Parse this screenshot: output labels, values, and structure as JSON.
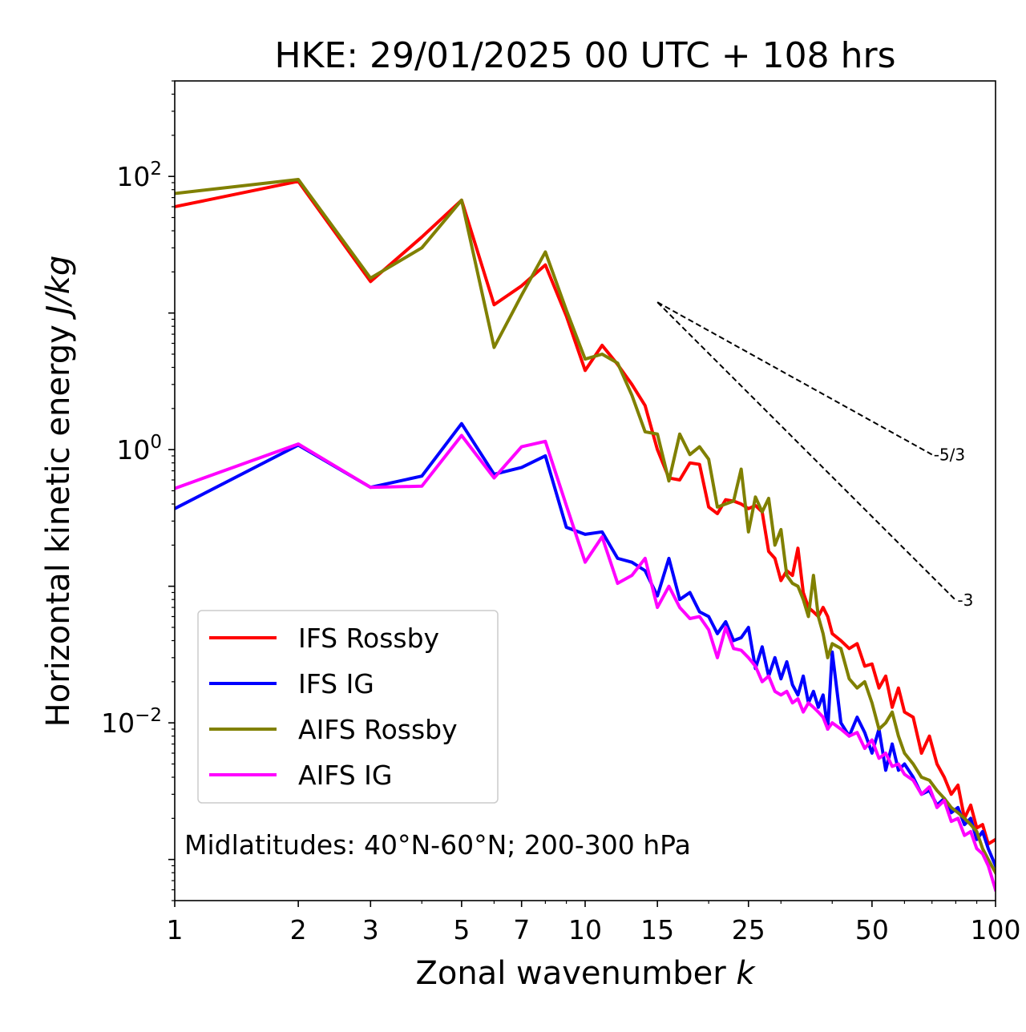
{
  "chart_data": {
    "type": "line",
    "title": "HKE: 29/01/2025 00 UTC + 108 hrs",
    "xlabel_prefix": "Zonal wavenumber ",
    "xlabel_var": "k",
    "ylabel_prefix": "Horizontal kinetic energy ",
    "ylabel_unit": "J/kg",
    "xscale": "log",
    "yscale": "log",
    "xlim": [
      1,
      100
    ],
    "ylim": [
      0.0005,
      500
    ],
    "x_ticks": [
      1,
      2,
      3,
      5,
      7,
      10,
      15,
      25,
      50,
      100
    ],
    "x_tick_labels": [
      "1",
      "2",
      "3",
      "5",
      "7",
      "10",
      "15",
      "25",
      "50",
      "100"
    ],
    "y_ticks": [
      {
        "value": 0.01,
        "base": "10",
        "exp": "−2"
      },
      {
        "value": 1,
        "base": "10",
        "exp": "0"
      },
      {
        "value": 100,
        "base": "10",
        "exp": "2"
      }
    ],
    "grid": false,
    "legend_position": "lower-left",
    "annotation": "Midlatitudes: 40°N-60°N; 200-300 hPa",
    "reference_lines": [
      {
        "label": "-5/3",
        "x": [
          15,
          70
        ],
        "y": [
          12,
          0.92
        ]
      },
      {
        "label": "-3",
        "x": [
          15,
          80
        ],
        "y": [
          12,
          0.079
        ]
      }
    ],
    "series": [
      {
        "name": "IFS Rossby",
        "color": "#ff0000",
        "x": [
          1,
          2,
          3,
          4,
          5,
          6,
          7,
          8,
          9,
          10,
          11,
          12,
          13,
          14,
          15,
          16,
          17,
          18,
          19,
          20,
          21,
          22,
          23,
          24,
          25,
          26,
          27,
          28,
          29,
          30,
          31,
          32,
          33,
          34,
          35,
          36,
          37,
          38,
          39,
          40,
          42,
          44,
          46,
          48,
          50,
          52,
          54,
          56,
          58,
          60,
          63,
          66,
          69,
          72,
          75,
          78,
          81,
          84,
          87,
          90,
          93,
          96,
          100
        ],
        "y": [
          60,
          92,
          17,
          36,
          67,
          11.5,
          15.8,
          22.5,
          9.5,
          3.8,
          5.8,
          4.2,
          3.0,
          2.1,
          1.0,
          0.62,
          0.6,
          0.8,
          0.78,
          0.38,
          0.34,
          0.43,
          0.42,
          0.4,
          0.37,
          0.39,
          0.35,
          0.18,
          0.16,
          0.11,
          0.13,
          0.12,
          0.19,
          0.09,
          0.07,
          0.065,
          0.06,
          0.07,
          0.06,
          0.045,
          0.04,
          0.035,
          0.038,
          0.026,
          0.027,
          0.018,
          0.022,
          0.013,
          0.018,
          0.012,
          0.011,
          0.006,
          0.008,
          0.005,
          0.004,
          0.003,
          0.0035,
          0.002,
          0.0025,
          0.0017,
          0.0018,
          0.0013,
          0.0014
        ]
      },
      {
        "name": "IFS IG",
        "color": "#0000ff",
        "x": [
          1,
          2,
          3,
          4,
          5,
          6,
          7,
          8,
          9,
          10,
          11,
          12,
          13,
          14,
          15,
          16,
          17,
          18,
          19,
          20,
          21,
          22,
          23,
          24,
          25,
          26,
          27,
          28,
          29,
          30,
          31,
          32,
          33,
          34,
          35,
          36,
          37,
          38,
          39,
          40,
          42,
          44,
          46,
          48,
          50,
          52,
          54,
          56,
          58,
          60,
          63,
          66,
          69,
          72,
          75,
          78,
          81,
          84,
          87,
          90,
          93,
          96,
          100
        ],
        "y": [
          0.37,
          1.08,
          0.53,
          0.64,
          1.55,
          0.66,
          0.74,
          0.9,
          0.27,
          0.24,
          0.25,
          0.16,
          0.15,
          0.13,
          0.085,
          0.16,
          0.08,
          0.09,
          0.065,
          0.06,
          0.045,
          0.055,
          0.04,
          0.042,
          0.05,
          0.025,
          0.036,
          0.022,
          0.03,
          0.021,
          0.028,
          0.019,
          0.016,
          0.022,
          0.014,
          0.017,
          0.013,
          0.016,
          0.009,
          0.033,
          0.01,
          0.008,
          0.011,
          0.0085,
          0.006,
          0.009,
          0.0045,
          0.007,
          0.0045,
          0.005,
          0.004,
          0.003,
          0.0032,
          0.0025,
          0.0028,
          0.0022,
          0.0024,
          0.0018,
          0.002,
          0.0014,
          0.0016,
          0.0012,
          0.0009
        ]
      },
      {
        "name": "AIFS Rossby",
        "color": "#808000",
        "x": [
          1,
          2,
          3,
          4,
          5,
          6,
          7,
          8,
          9,
          10,
          11,
          12,
          13,
          14,
          15,
          16,
          17,
          18,
          19,
          20,
          21,
          22,
          23,
          24,
          25,
          26,
          27,
          28,
          29,
          30,
          31,
          32,
          33,
          34,
          35,
          36,
          37,
          38,
          39,
          40,
          42,
          44,
          46,
          48,
          50,
          52,
          54,
          56,
          58,
          60,
          63,
          66,
          69,
          72,
          75,
          78,
          81,
          84,
          87,
          90,
          93,
          96,
          100
        ],
        "y": [
          75,
          95,
          18,
          30,
          67,
          5.6,
          13.5,
          28,
          10.5,
          4.6,
          5.0,
          4.3,
          2.5,
          1.35,
          1.3,
          0.59,
          1.3,
          0.92,
          1.05,
          0.85,
          0.38,
          0.4,
          0.42,
          0.72,
          0.25,
          0.45,
          0.35,
          0.44,
          0.2,
          0.26,
          0.12,
          0.105,
          0.1,
          0.08,
          0.06,
          0.12,
          0.06,
          0.045,
          0.03,
          0.038,
          0.035,
          0.021,
          0.018,
          0.02,
          0.014,
          0.009,
          0.01,
          0.012,
          0.008,
          0.006,
          0.005,
          0.004,
          0.0038,
          0.0032,
          0.0028,
          0.0024,
          0.0022,
          0.002,
          0.0018,
          0.0016,
          0.0012,
          0.001,
          0.0008
        ]
      },
      {
        "name": "AIFS IG",
        "color": "#ff00ff",
        "x": [
          1,
          2,
          3,
          4,
          5,
          6,
          7,
          8,
          9,
          10,
          11,
          12,
          13,
          14,
          15,
          16,
          17,
          18,
          19,
          20,
          21,
          22,
          23,
          24,
          25,
          26,
          27,
          28,
          29,
          30,
          31,
          32,
          33,
          34,
          35,
          36,
          37,
          38,
          39,
          40,
          42,
          44,
          46,
          48,
          50,
          52,
          54,
          56,
          58,
          60,
          63,
          66,
          69,
          72,
          75,
          78,
          81,
          84,
          87,
          90,
          93,
          96,
          100
        ],
        "y": [
          0.52,
          1.1,
          0.53,
          0.54,
          1.27,
          0.62,
          1.05,
          1.15,
          0.39,
          0.15,
          0.23,
          0.105,
          0.12,
          0.16,
          0.07,
          0.1,
          0.07,
          0.058,
          0.06,
          0.048,
          0.03,
          0.05,
          0.035,
          0.034,
          0.03,
          0.026,
          0.02,
          0.022,
          0.017,
          0.016,
          0.017,
          0.014,
          0.015,
          0.012,
          0.014,
          0.013,
          0.012,
          0.011,
          0.009,
          0.01,
          0.009,
          0.008,
          0.0085,
          0.0065,
          0.0075,
          0.0055,
          0.006,
          0.0048,
          0.005,
          0.0042,
          0.0038,
          0.003,
          0.0034,
          0.0024,
          0.0027,
          0.0019,
          0.002,
          0.0015,
          0.0016,
          0.0012,
          0.0011,
          0.0009,
          0.0006
        ]
      }
    ]
  }
}
